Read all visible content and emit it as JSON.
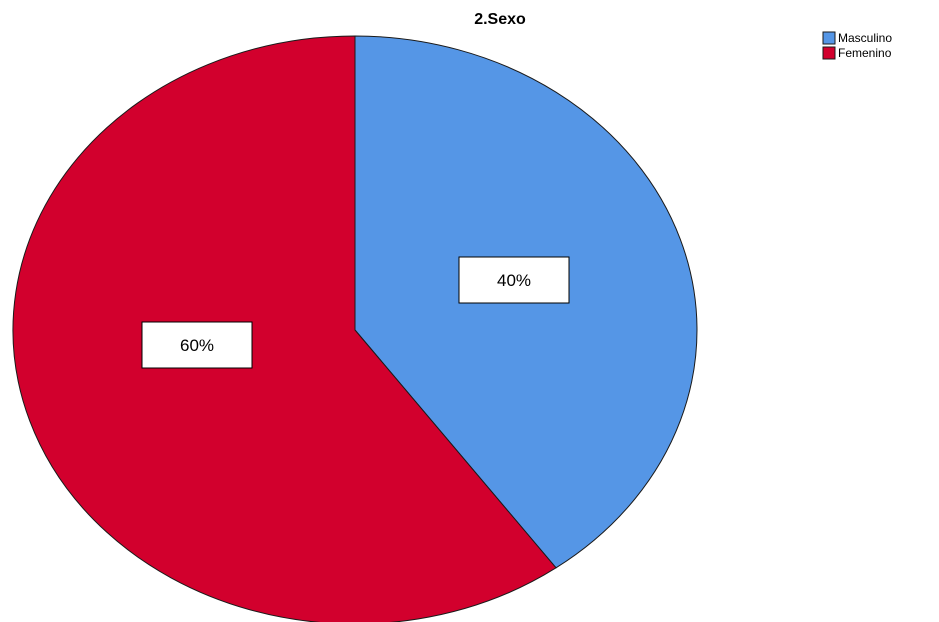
{
  "chart_data": {
    "type": "pie",
    "title": "2.Sexo",
    "categories": [
      "Masculino",
      "Femenino"
    ],
    "values": [
      40,
      60
    ],
    "labels": [
      "40%",
      "60%"
    ],
    "colors": [
      "#5596E6",
      "#D2002D"
    ],
    "legend_position": "top-right"
  }
}
